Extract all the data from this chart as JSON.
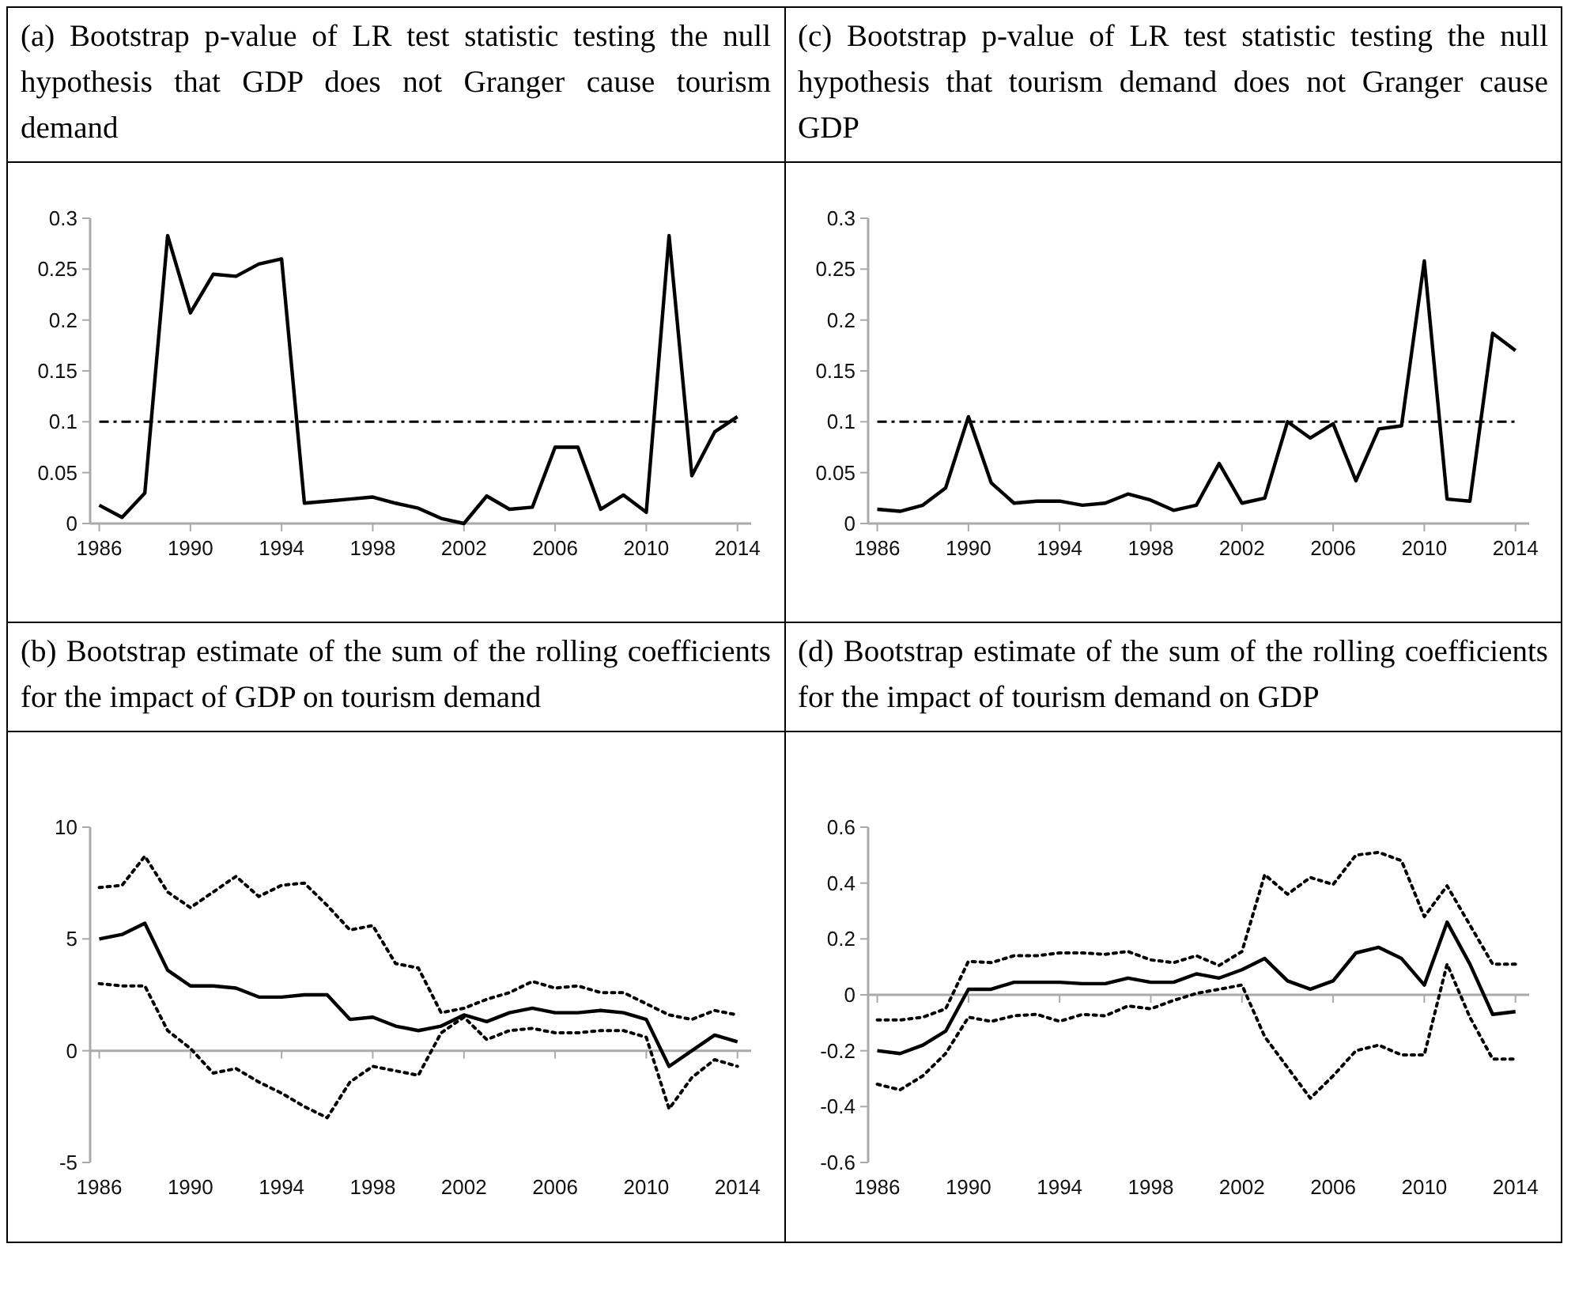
{
  "chart_data": [
    {
      "type": "line",
      "title": "(a)  Bootstrap p-value of LR test statistic testing the null hypothesis that GDP does not Granger cause tourism demand",
      "x": [
        1986,
        1987,
        1988,
        1989,
        1990,
        1991,
        1992,
        1993,
        1994,
        1995,
        1996,
        1997,
        1998,
        1999,
        2000,
        2001,
        2002,
        2003,
        2004,
        2005,
        2006,
        2007,
        2008,
        2009,
        2010,
        2011,
        2012,
        2013,
        2014
      ],
      "xlim": [
        1985.6,
        2014.6
      ],
      "xticks": [
        1986,
        1990,
        1994,
        1998,
        2002,
        2006,
        2010,
        2014
      ],
      "ylim": [
        0,
        0.3
      ],
      "yticks": [
        0,
        0.05,
        0.1,
        0.15,
        0.2,
        0.25,
        0.3
      ],
      "grid": false,
      "series": [
        {
          "color": "#000000",
          "line_style": "solid",
          "values": [
            0.018,
            0.006,
            0.03,
            0.283,
            0.207,
            0.245,
            0.243,
            0.255,
            0.26,
            0.02,
            0.022,
            0.024,
            0.026,
            0.02,
            0.015,
            0.005,
            0,
            0.027,
            0.014,
            0.016,
            0.075,
            0.075,
            0.014,
            0.028,
            0.011,
            0.283,
            0.047,
            0.09,
            0.105
          ]
        }
      ],
      "ref_lines": [
        {
          "axis": "y",
          "value": 0.1,
          "color": "#000000",
          "line_style": "dashed"
        }
      ]
    },
    {
      "type": "line",
      "title": "(c)  Bootstrap p-value of LR test statistic testing the null hypothesis that tourism demand does not Granger cause GDP",
      "x": [
        1986,
        1987,
        1988,
        1989,
        1990,
        1991,
        1992,
        1993,
        1994,
        1995,
        1996,
        1997,
        1998,
        1999,
        2000,
        2001,
        2002,
        2003,
        2004,
        2005,
        2006,
        2007,
        2008,
        2009,
        2010,
        2011,
        2012,
        2013,
        2014
      ],
      "xlim": [
        1985.6,
        2014.6
      ],
      "xticks": [
        1986,
        1990,
        1994,
        1998,
        2002,
        2006,
        2010,
        2014
      ],
      "ylim": [
        0,
        0.3
      ],
      "yticks": [
        0,
        0.05,
        0.1,
        0.15,
        0.2,
        0.25,
        0.3
      ],
      "grid": false,
      "series": [
        {
          "color": "#000000",
          "line_style": "solid",
          "values": [
            0.014,
            0.012,
            0.018,
            0.035,
            0.105,
            0.04,
            0.02,
            0.022,
            0.022,
            0.018,
            0.02,
            0.029,
            0.023,
            0.013,
            0.018,
            0.059,
            0.02,
            0.025,
            0.1,
            0.084,
            0.098,
            0.042,
            0.093,
            0.096,
            0.258,
            0.024,
            0.022,
            0.187,
            0.17
          ]
        }
      ],
      "ref_lines": [
        {
          "axis": "y",
          "value": 0.1,
          "color": "#000000",
          "line_style": "dashed"
        }
      ]
    },
    {
      "type": "line",
      "title": "(b)  Bootstrap estimate of the sum of the rolling coefficients for the impact of GDP on tourism demand",
      "x": [
        1986,
        1987,
        1988,
        1989,
        1990,
        1991,
        1992,
        1993,
        1994,
        1995,
        1996,
        1997,
        1998,
        1999,
        2000,
        2001,
        2002,
        2003,
        2004,
        2005,
        2006,
        2007,
        2008,
        2009,
        2010,
        2011,
        2012,
        2013,
        2014
      ],
      "xlim": [
        1985.6,
        2014.6
      ],
      "xticks": [
        1986,
        1990,
        1994,
        1998,
        2002,
        2006,
        2010,
        2014
      ],
      "ylim": [
        -5,
        10
      ],
      "yticks": [
        -5,
        0,
        5,
        10
      ],
      "series": [
        {
          "color": "#000000",
          "line_style": "solid",
          "values": [
            5.0,
            5.2,
            5.7,
            3.6,
            2.9,
            2.9,
            2.8,
            2.4,
            2.4,
            2.5,
            2.5,
            1.4,
            1.5,
            1.1,
            0.9,
            1.1,
            1.6,
            1.3,
            1.7,
            1.9,
            1.7,
            1.7,
            1.8,
            1.7,
            1.4,
            -0.7,
            0,
            0.7,
            0.4
          ]
        },
        {
          "color": "#000000",
          "line_style": "dotted",
          "values": [
            7.3,
            7.4,
            8.7,
            7.1,
            6.4,
            7.1,
            7.8,
            6.9,
            7.4,
            7.5,
            6.5,
            5.4,
            5.6,
            3.9,
            3.7,
            1.7,
            1.9,
            2.3,
            2.6,
            3.1,
            2.8,
            2.9,
            2.6,
            2.6,
            2.1,
            1.6,
            1.4,
            1.8,
            1.6
          ]
        },
        {
          "color": "#000000",
          "line_style": "dotted",
          "values": [
            3.0,
            2.9,
            2.9,
            0.9,
            0.1,
            -1.0,
            -0.8,
            -1.4,
            -1.9,
            -2.5,
            -3.0,
            -1.4,
            -0.7,
            -0.9,
            -1.1,
            0.8,
            1.5,
            0.5,
            0.9,
            1.0,
            0.8,
            0.8,
            0.9,
            0.9,
            0.6,
            -2.6,
            -1.2,
            -0.4,
            -0.7
          ]
        }
      ]
    },
    {
      "type": "line",
      "title": "(d)  Bootstrap estimate of the sum of the rolling coefficients for the impact  of tourism demand on GDP",
      "x": [
        1986,
        1987,
        1988,
        1989,
        1990,
        1991,
        1992,
        1993,
        1994,
        1995,
        1996,
        1997,
        1998,
        1999,
        2000,
        2001,
        2002,
        2003,
        2004,
        2005,
        2006,
        2007,
        2008,
        2009,
        2010,
        2011,
        2012,
        2013,
        2014
      ],
      "xlim": [
        1985.6,
        2014.6
      ],
      "xticks": [
        1986,
        1990,
        1994,
        1998,
        2002,
        2006,
        2010,
        2014
      ],
      "ylim": [
        -0.6,
        0.6
      ],
      "yticks": [
        -0.6,
        -0.4,
        -0.2,
        0,
        0.2,
        0.4,
        0.6
      ],
      "series": [
        {
          "color": "#000000",
          "line_style": "solid",
          "values": [
            -0.2,
            -0.21,
            -0.18,
            -0.13,
            0.02,
            0.02,
            0.045,
            0.045,
            0.045,
            0.04,
            0.04,
            0.06,
            0.045,
            0.045,
            0.075,
            0.06,
            0.09,
            0.13,
            0.05,
            0.02,
            0.05,
            0.15,
            0.17,
            0.13,
            0.035,
            0.26,
            0.11,
            -0.07,
            -0.06
          ]
        },
        {
          "color": "#000000",
          "line_style": "dotted",
          "values": [
            -0.09,
            -0.09,
            -0.08,
            -0.05,
            0.12,
            0.115,
            0.14,
            0.14,
            0.15,
            0.15,
            0.145,
            0.155,
            0.125,
            0.115,
            0.14,
            0.105,
            0.155,
            0.43,
            0.36,
            0.42,
            0.395,
            0.5,
            0.51,
            0.48,
            0.28,
            0.39,
            0.25,
            0.11,
            0.11
          ]
        },
        {
          "color": "#000000",
          "line_style": "dotted",
          "values": [
            -0.32,
            -0.34,
            -0.29,
            -0.21,
            -0.08,
            -0.095,
            -0.075,
            -0.07,
            -0.095,
            -0.07,
            -0.075,
            -0.04,
            -0.05,
            -0.02,
            0.005,
            0.02,
            0.035,
            -0.15,
            -0.26,
            -0.37,
            -0.29,
            -0.2,
            -0.18,
            -0.215,
            -0.215,
            0.11,
            -0.08,
            -0.23,
            -0.23
          ]
        }
      ]
    }
  ]
}
